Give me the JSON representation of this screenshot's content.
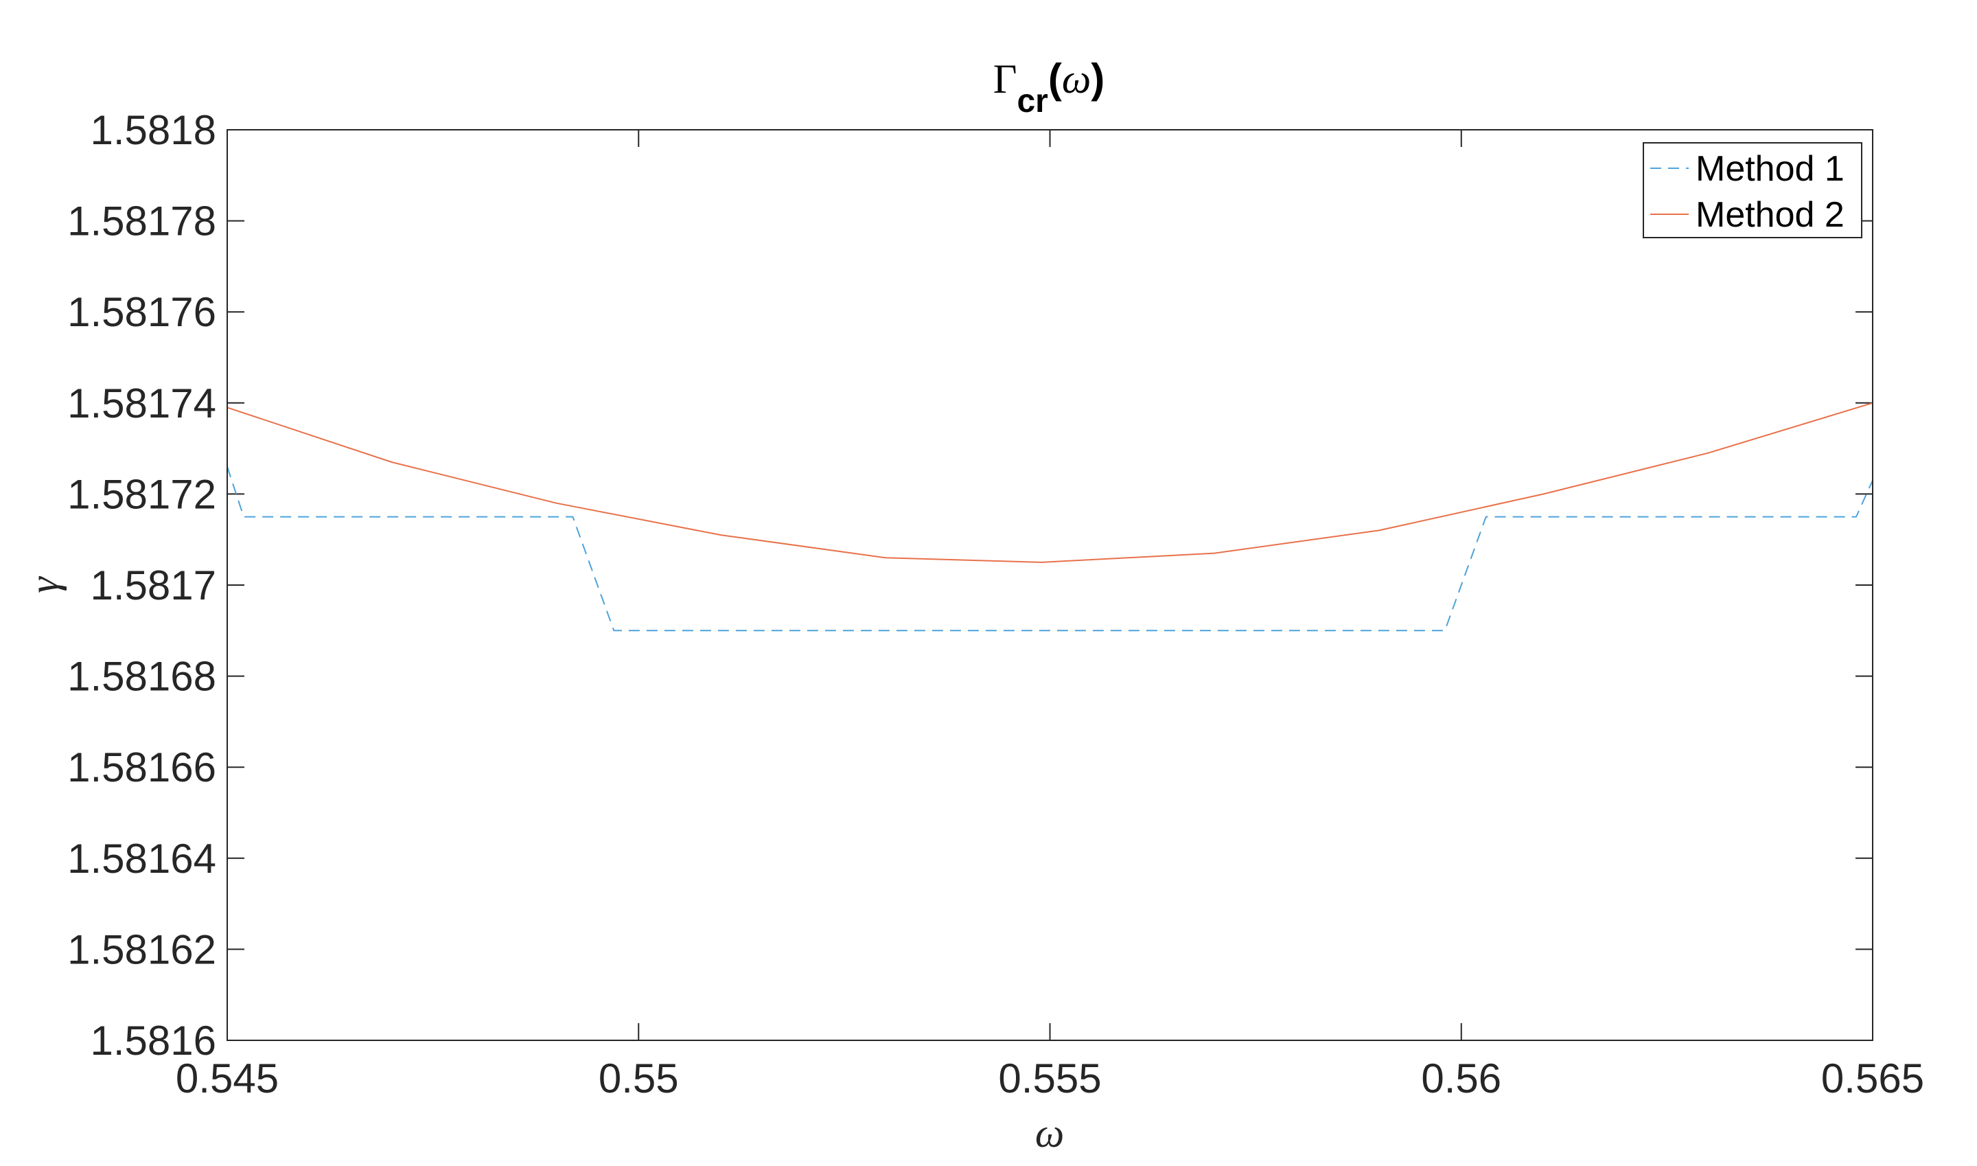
{
  "chart_data": {
    "type": "line",
    "title": {
      "main": "Γ",
      "subscript": "cr",
      "open": "(",
      "var": "ω",
      "close": ")"
    },
    "xlabel": "ω",
    "ylabel": "γ",
    "xlim": [
      0.545,
      0.565
    ],
    "ylim": [
      1.5816,
      1.5818
    ],
    "x_ticks": [
      0.545,
      0.55,
      0.555,
      0.56,
      0.565
    ],
    "x_tick_labels": [
      "0.545",
      "0.55",
      "0.555",
      "0.56",
      "0.565"
    ],
    "y_ticks": [
      1.5816,
      1.58162,
      1.58164,
      1.58166,
      1.58168,
      1.5817,
      1.58172,
      1.58174,
      1.58176,
      1.58178,
      1.5818
    ],
    "y_tick_labels": [
      "1.5816",
      "1.58162",
      "1.58164",
      "1.58166",
      "1.58168",
      "1.5817",
      "1.58172",
      "1.58174",
      "1.58176",
      "1.58178",
      "1.5818"
    ],
    "grid": false,
    "legend_position": "top-right",
    "series": [
      {
        "name": "Method 1",
        "style": "dashed",
        "color": "#4DA3DA",
        "x": [
          0.545,
          0.5452,
          0.5492,
          0.5497,
          0.5598,
          0.5603,
          0.5648,
          0.565
        ],
        "y": [
          1.581726,
          1.581715,
          1.581715,
          1.58169,
          1.58169,
          1.581715,
          1.581715,
          1.581723
        ]
      },
      {
        "name": "Method 2",
        "style": "solid",
        "color": "#E8714A",
        "x": [
          0.545,
          0.547,
          0.549,
          0.551,
          0.553,
          0.5549,
          0.557,
          0.559,
          0.561,
          0.563,
          0.565
        ],
        "y": [
          1.581739,
          1.581727,
          1.581718,
          1.581711,
          1.581706,
          1.581705,
          1.581707,
          1.581712,
          1.58172,
          1.581729,
          1.58174
        ]
      }
    ]
  }
}
